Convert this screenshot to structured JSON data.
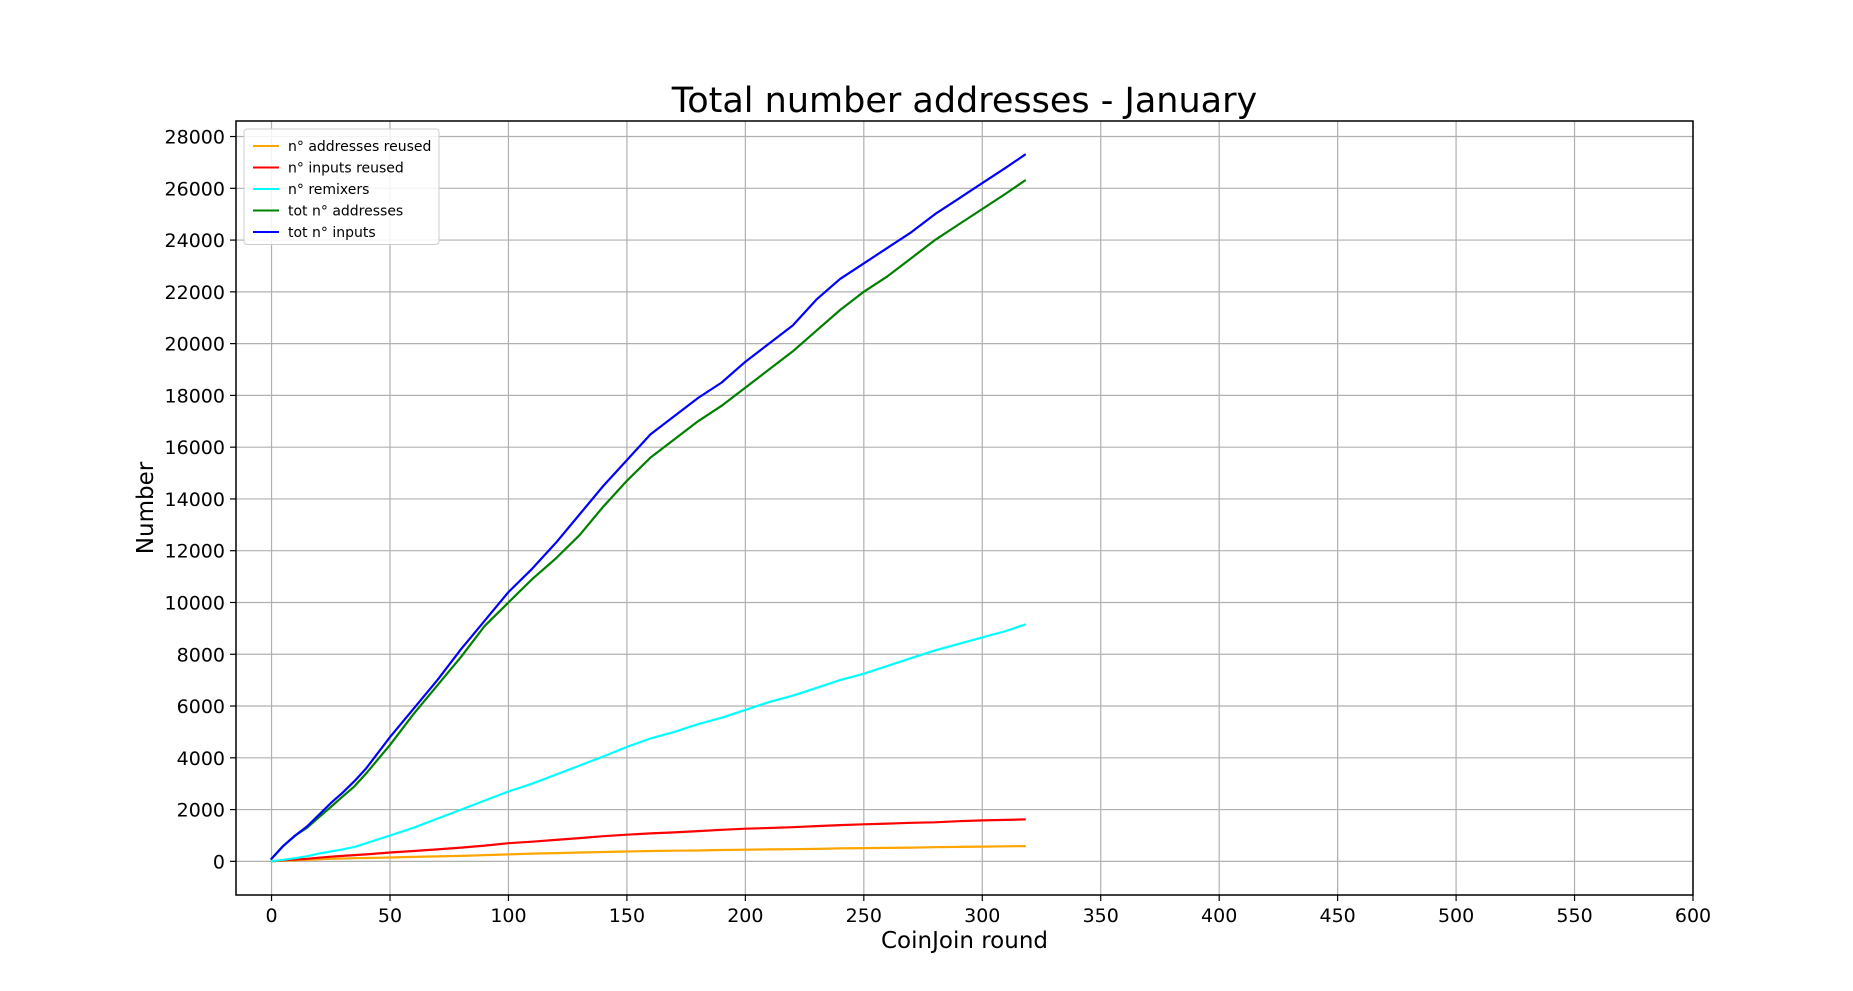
{
  "chart_data": {
    "type": "line",
    "title": "Total number addresses - January",
    "xlabel": "CoinJoin round",
    "ylabel": "Number",
    "xlim": [
      -15,
      600
    ],
    "ylim": [
      -1300,
      28600
    ],
    "xticks": [
      0,
      50,
      100,
      150,
      200,
      250,
      300,
      350,
      400,
      450,
      500,
      550,
      600
    ],
    "yticks": [
      0,
      2000,
      4000,
      6000,
      8000,
      10000,
      12000,
      14000,
      16000,
      18000,
      20000,
      22000,
      24000,
      26000,
      28000
    ],
    "grid": true,
    "legend_position": "top-left",
    "x": [
      0,
      5,
      10,
      15,
      20,
      25,
      30,
      35,
      40,
      50,
      60,
      70,
      80,
      90,
      100,
      110,
      120,
      130,
      140,
      150,
      160,
      170,
      180,
      190,
      200,
      210,
      220,
      230,
      240,
      250,
      260,
      270,
      280,
      290,
      300,
      310,
      318
    ],
    "series": [
      {
        "name": "n° addresses reused",
        "color": "#ffa500",
        "values": [
          0,
          20,
          40,
          60,
          80,
          100,
          110,
          120,
          130,
          150,
          170,
          190,
          210,
          240,
          270,
          300,
          320,
          340,
          360,
          380,
          400,
          410,
          420,
          440,
          450,
          460,
          470,
          480,
          500,
          510,
          520,
          530,
          545,
          560,
          570,
          580,
          590
        ]
      },
      {
        "name": "n° inputs reused",
        "color": "#ff0000",
        "values": [
          0,
          40,
          70,
          100,
          140,
          180,
          210,
          240,
          270,
          340,
          400,
          460,
          530,
          610,
          700,
          760,
          830,
          900,
          970,
          1030,
          1080,
          1120,
          1170,
          1220,
          1260,
          1290,
          1320,
          1360,
          1400,
          1430,
          1460,
          1490,
          1510,
          1550,
          1580,
          1600,
          1620
        ]
      },
      {
        "name": "n° remixers",
        "color": "#00ffff",
        "values": [
          0,
          60,
          120,
          200,
          300,
          380,
          460,
          560,
          700,
          1000,
          1300,
          1650,
          2000,
          2350,
          2700,
          3000,
          3350,
          3700,
          4050,
          4420,
          4750,
          5000,
          5300,
          5550,
          5850,
          6150,
          6400,
          6700,
          7000,
          7250,
          7550,
          7850,
          8150,
          8400,
          8650,
          8900,
          9150
        ]
      },
      {
        "name": "tot n° addresses",
        "color": "#008000",
        "values": [
          100,
          600,
          1000,
          1300,
          1700,
          2100,
          2500,
          2900,
          3400,
          4500,
          5700,
          6800,
          7900,
          9100,
          10000,
          10900,
          11700,
          12600,
          13700,
          14700,
          15600,
          16300,
          17000,
          17600,
          18300,
          19000,
          19700,
          20500,
          21300,
          22000,
          22600,
          23300,
          24000,
          24600,
          25200,
          25800,
          26300
        ]
      },
      {
        "name": "tot n° inputs",
        "color": "#0000ff",
        "values": [
          100,
          600,
          1000,
          1350,
          1800,
          2250,
          2650,
          3100,
          3600,
          4800,
          5900,
          7000,
          8200,
          9300,
          10400,
          11300,
          12300,
          13400,
          14500,
          15500,
          16500,
          17200,
          17900,
          18500,
          19300,
          20000,
          20700,
          21700,
          22500,
          23100,
          23700,
          24300,
          25000,
          25600,
          26200,
          26800,
          27300
        ]
      }
    ]
  }
}
